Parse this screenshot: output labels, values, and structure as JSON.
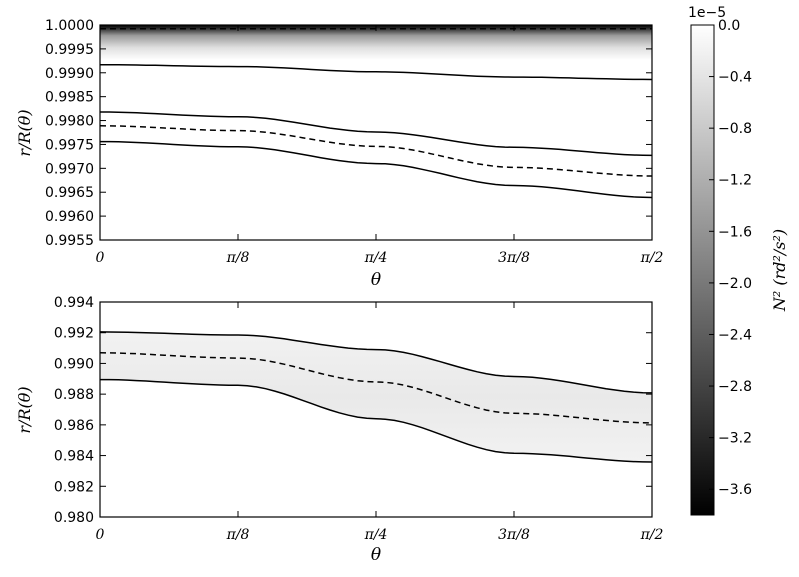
{
  "chart_data": [
    {
      "type": "area",
      "panel": "top",
      "ylabel": "r/R(θ)",
      "xlabel": "θ",
      "xlim": [
        0,
        1.5708
      ],
      "ylim": [
        0.9955,
        1.0
      ],
      "x_ticks": [
        0,
        0.3927,
        0.7854,
        1.1781,
        1.5708
      ],
      "x_tick_labels": [
        "0",
        "π/8",
        "π/4",
        "3π/8",
        "π/2"
      ],
      "y_ticks": [
        0.9955,
        0.996,
        0.9965,
        0.997,
        0.9975,
        0.998,
        0.9985,
        0.999,
        0.9995,
        1.0
      ],
      "y_tick_labels": [
        "0.9955",
        "0.9960",
        "0.9965",
        "0.9970",
        "0.9975",
        "0.9980",
        "0.9985",
        "0.9990",
        "0.9995",
        "1.0000"
      ],
      "grid": false,
      "series": [
        {
          "style": "solid",
          "x": [
            0,
            0.3927,
            0.7854,
            1.1781,
            1.5708
          ],
          "values": [
            0.99917,
            0.99913,
            0.99902,
            0.99891,
            0.99886
          ]
        },
        {
          "style": "dashed",
          "x": [
            0,
            0.3927,
            0.7854,
            1.1781,
            1.5708
          ],
          "values": [
            0.99992,
            0.99992,
            0.99992,
            0.99992,
            0.99992
          ]
        },
        {
          "style": "solid",
          "x": [
            0,
            0.3927,
            0.7854,
            1.1781,
            1.5708
          ],
          "values": [
            0.99818,
            0.99808,
            0.99776,
            0.99744,
            0.99727
          ]
        },
        {
          "style": "dashed",
          "x": [
            0,
            0.3927,
            0.7854,
            1.1781,
            1.5708
          ],
          "values": [
            0.99789,
            0.99779,
            0.99746,
            0.99702,
            0.99684
          ]
        },
        {
          "style": "solid",
          "x": [
            0,
            0.3927,
            0.7854,
            1.1781,
            1.5708
          ],
          "values": [
            0.99756,
            0.99745,
            0.9971,
            0.99664,
            0.99639
          ]
        }
      ],
      "shading": {
        "description": "N² colormap: dark near r/R=1.0000, fading to white by ~0.9988"
      }
    },
    {
      "type": "area",
      "panel": "bottom",
      "ylabel": "r/R(θ)",
      "xlabel": "θ",
      "xlim": [
        0,
        1.5708
      ],
      "ylim": [
        0.98,
        0.994
      ],
      "x_ticks": [
        0,
        0.3927,
        0.7854,
        1.1781,
        1.5708
      ],
      "x_tick_labels": [
        "0",
        "π/8",
        "π/4",
        "3π/8",
        "π/2"
      ],
      "y_ticks": [
        0.98,
        0.982,
        0.984,
        0.986,
        0.988,
        0.99,
        0.992,
        0.994
      ],
      "y_tick_labels": [
        "0.980",
        "0.982",
        "0.984",
        "0.986",
        "0.988",
        "0.990",
        "0.992",
        "0.994"
      ],
      "grid": false,
      "series": [
        {
          "style": "solid",
          "x": [
            0,
            0.3927,
            0.7854,
            1.1781,
            1.5708
          ],
          "values": [
            0.99205,
            0.99185,
            0.9909,
            0.98915,
            0.98808
          ]
        },
        {
          "style": "dashed",
          "x": [
            0,
            0.3927,
            0.7854,
            1.1781,
            1.5708
          ],
          "values": [
            0.99069,
            0.99035,
            0.9888,
            0.98675,
            0.98613
          ]
        },
        {
          "style": "solid",
          "x": [
            0,
            0.3927,
            0.7854,
            1.1781,
            1.5708
          ],
          "values": [
            0.98895,
            0.98858,
            0.9864,
            0.98415,
            0.98358
          ]
        }
      ],
      "shading": {
        "description": "very light gray band between outer solid curves"
      }
    },
    {
      "type": "heatmap",
      "panel": "colorbar",
      "label": "N² (rd²/s²)",
      "offset_label": "1e−5",
      "range": [
        -3.8,
        0.0
      ],
      "ticks": [
        0.0,
        -0.4,
        -0.8,
        -1.2,
        -1.6,
        -2.0,
        -2.4,
        -2.8,
        -3.2,
        -3.6
      ],
      "tick_labels": [
        "0.0",
        "−0.4",
        "−0.8",
        "−1.2",
        "−1.6",
        "−2.0",
        "−2.4",
        "−2.8",
        "−3.2",
        "−3.6"
      ],
      "colors": {
        "min": "#000000",
        "max": "#ffffff"
      }
    }
  ],
  "labels": {
    "top_ylabel": "r/R(θ)",
    "bottom_ylabel": "r/R(θ)",
    "top_xlabel": "θ",
    "bottom_xlabel": "θ",
    "colorbar_offset": "1e−5",
    "colorbar_label": "N²  (rd²/s²)"
  }
}
